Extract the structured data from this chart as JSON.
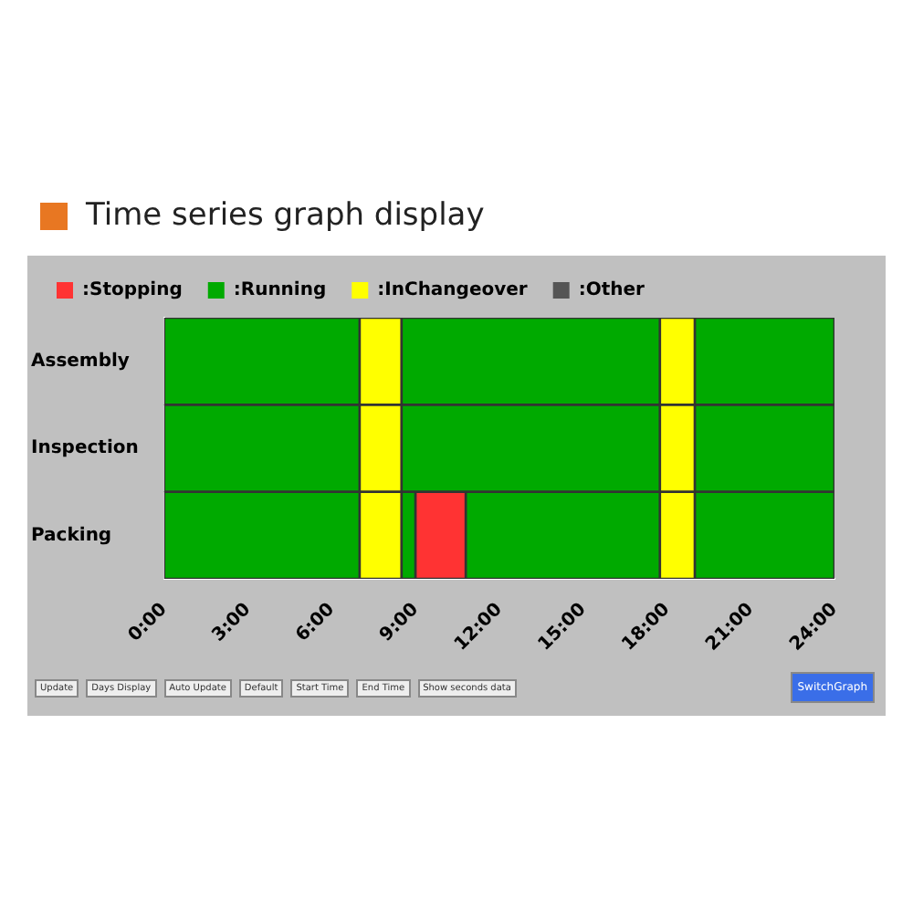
{
  "chart_data": {
    "type": "bar",
    "orientation": "horizontal",
    "title": "Time series graph display",
    "categories": [
      "Assembly",
      "Inspection",
      "Packing"
    ],
    "series": [
      {
        "name": ":Stopping",
        "color": "#ff3333",
        "values": [
          null,
          null,
          1.8
        ],
        "base": [
          null,
          null,
          9
        ]
      },
      {
        "name": ":Running",
        "color": "#00aa00",
        "values": [
          7,
          7,
          7
        ],
        "base": [
          0,
          0,
          0
        ]
      },
      {
        "name": ":InChangeover",
        "color": "#ffff00",
        "values": [
          1.5,
          1.5,
          1.5
        ],
        "base": [
          7,
          7,
          7
        ]
      },
      {
        "name": ":Other",
        "color": "#555555",
        "values": [
          null,
          null,
          null
        ],
        "base": [
          null,
          null,
          null
        ]
      },
      {
        "color": "#00aa00",
        "values": [
          9.25,
          9.25,
          0.5
        ],
        "base": [
          8.5,
          8.5,
          8.5
        ]
      },
      {
        "color": "#00aa00",
        "values": [
          null,
          null,
          6.95
        ],
        "base": [
          null,
          null,
          10.8
        ]
      },
      {
        "color": "#ffff00",
        "values": [
          1.25,
          1.25,
          1.25
        ],
        "base": [
          17.75,
          17.75,
          17.75
        ]
      },
      {
        "color": "#00aa00",
        "values": [
          5,
          5,
          5
        ],
        "base": [
          19,
          19,
          19
        ]
      }
    ],
    "xlim": [
      0,
      24
    ],
    "xticks": [
      {
        "value": 0,
        "label": "0:00"
      },
      {
        "value": 3,
        "label": "3:00"
      },
      {
        "value": 6,
        "label": "6:00"
      },
      {
        "value": 9,
        "label": "9:00"
      },
      {
        "value": 12,
        "label": "12:00"
      },
      {
        "value": 15,
        "label": "15:00"
      },
      {
        "value": 18,
        "label": "18:00"
      },
      {
        "value": 21,
        "label": "21:00"
      },
      {
        "value": 24,
        "label": "24:00"
      }
    ],
    "grid": false,
    "legend": "top left",
    "annotations": [
      "Update",
      "Days Display",
      "Auto Update",
      "Default",
      "Start Time",
      "End Time",
      "Show seconds data",
      "SwitchGraph"
    ]
  }
}
